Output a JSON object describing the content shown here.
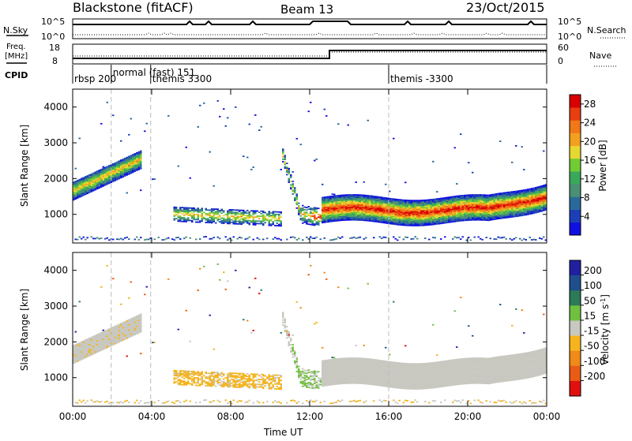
{
  "header": {
    "station": "Blackstone (fitACF)",
    "beam": "Beam 13",
    "date": "23/Oct/2015"
  },
  "colors": {
    "power_scale": [
      "#1010e0",
      "#1c3fb8",
      "#2a6a9a",
      "#4a8f76",
      "#3aa85a",
      "#70cc33",
      "#e6d830",
      "#f2a020",
      "#f07818",
      "#e83e10",
      "#d80000"
    ],
    "velocity_scale": [
      "#2020a0",
      "#1e4f8c",
      "#2d7a58",
      "#70c040",
      "#c8c8c0",
      "#f5b41e",
      "#f08a18",
      "#e85c16",
      "#e01010"
    ],
    "gray_line": "#bbbbbb",
    "ink": "#000000"
  },
  "top_panels": {
    "nsky_label": "N.Sky",
    "nsearch_label": "N.Search",
    "left_scale_top": "10^5",
    "left_scale_bottom": "10^0",
    "right_scale_top": "10^5",
    "right_scale_bottom": "10^0",
    "freq_label_1": "Freq.",
    "freq_label_2": "[MHz]",
    "freq_top": "18",
    "freq_bottom": "8",
    "nave_label": "Nave",
    "nave_top": "60",
    "nave_bottom": "0",
    "cpid_label": "CPID",
    "cpid_segments": [
      {
        "label": "rbsp 200",
        "start_hour": 0.0
      },
      {
        "label": "normal (fast) 151",
        "start_hour": 1.95
      },
      {
        "label": "themis 3300",
        "start_hour": 3.95
      },
      {
        "label": "themis -3300",
        "start_hour": 16.0
      }
    ]
  },
  "chart_data": [
    {
      "type": "heatmap",
      "name": "power",
      "xlabel": "",
      "ylabel": "Slant Range [km]",
      "xlim": [
        0,
        24
      ],
      "ylim": [
        200,
        4500
      ],
      "yticks": [
        1000,
        2000,
        3000,
        4000
      ],
      "colorbar_label": "Power [dB]",
      "colorbar_ticks": [
        4,
        8,
        12,
        16,
        20,
        24,
        28
      ],
      "colorbar_range": [
        0,
        30
      ],
      "features": [
        {
          "desc": "main echo band",
          "from_hour": 0.0,
          "to_hour": 3.5,
          "range_km": [
            1600,
            2700
          ]
        },
        {
          "desc": "afternoon band",
          "from_hour": 5.0,
          "to_hour": 10.5,
          "range_km": [
            800,
            1200
          ]
        },
        {
          "desc": "strong band",
          "from_hour": 11.5,
          "to_hour": 24.0,
          "range_km": [
            900,
            1900
          ]
        }
      ]
    },
    {
      "type": "heatmap",
      "name": "velocity",
      "xlabel": "Time UT",
      "ylabel": "Slant Range [km]",
      "xlim": [
        0,
        24
      ],
      "ylim": [
        200,
        4500
      ],
      "yticks": [
        1000,
        2000,
        3000,
        4000
      ],
      "xtick_labels": [
        "00:00",
        "04:00",
        "08:00",
        "12:00",
        "16:00",
        "20:00",
        "00:00"
      ],
      "colorbar_label": "Velocity [m s^-1]",
      "colorbar_ticks": [
        200,
        100,
        50,
        15,
        -15,
        -50,
        -100,
        -200
      ]
    }
  ],
  "axes": {
    "power_ylabel": "Slant Range [km]",
    "velocity_ylabel": "Slant Range [km]",
    "ytick_labels": [
      "1000",
      "2000",
      "3000",
      "4000"
    ],
    "xtick_labels": [
      "00:00",
      "04:00",
      "08:00",
      "12:00",
      "16:00",
      "20:00",
      "00:00"
    ],
    "xlabel": "Time UT",
    "power_cb_label": "Power [dB]",
    "power_cb_ticks": [
      "28",
      "24",
      "20",
      "16",
      "12",
      "8",
      "4"
    ],
    "velocity_cb_label": "Velocity [m s",
    "velocity_cb_exp": "-1",
    "velocity_cb_tail": "]",
    "velocity_cb_ticks": [
      "200",
      "100",
      "50",
      "15",
      "-15",
      "-50",
      "-100",
      "-200"
    ]
  }
}
